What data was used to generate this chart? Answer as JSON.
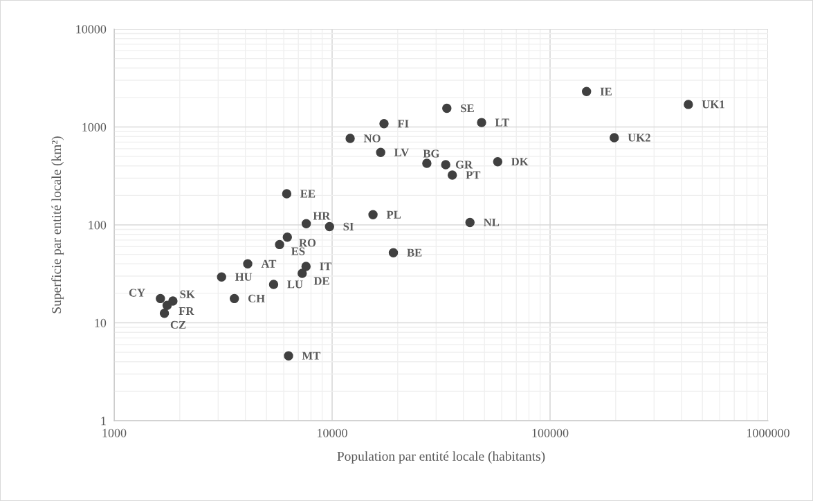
{
  "chart_data": {
    "type": "scatter",
    "xlabel": "Population par entité locale (habitants)",
    "ylabel": "Superficie par entité locale (km²)",
    "log": "xy",
    "grid": true,
    "marker": "circle",
    "legend": false,
    "xlim": [
      1000,
      1000000
    ],
    "xticks": [
      1000,
      10000,
      100000,
      1000000
    ],
    "ylim": [
      1,
      10000
    ],
    "yticks": [
      1,
      10,
      100,
      1000,
      10000
    ],
    "series": [
      {
        "color": "#404040",
        "x": [
          147000,
          431000,
          197000,
          33600,
          17300,
          48500,
          12100,
          16700,
          27200,
          33200,
          35600,
          57500,
          6190,
          7610,
          15400,
          9730,
          42900,
          6230,
          5740,
          19100,
          4100,
          7590,
          3110,
          7290,
          5390,
          1630,
          1860,
          3560,
          1750,
          1700,
          6310
        ],
        "values": [
          2300,
          1700,
          777,
          1550,
          1080,
          1110,
          764,
          550,
          426,
          412,
          323,
          442,
          208,
          103,
          127,
          96,
          106,
          75,
          63,
          52,
          40,
          37.7,
          29.4,
          32,
          24.7,
          17.7,
          16.7,
          17.7,
          15.1,
          12.5,
          4.6
        ]
      }
    ],
    "annotations": [
      {
        "text": "IE",
        "x": 147000,
        "y": 2300
      },
      {
        "text": "UK1",
        "x": 431000,
        "y": 1700
      },
      {
        "text": "UK2",
        "x": 197000,
        "y": 777
      },
      {
        "text": "SE",
        "x": 33600,
        "y": 1550
      },
      {
        "text": "FI",
        "x": 17300,
        "y": 1080
      },
      {
        "text": "LT",
        "x": 48500,
        "y": 1110
      },
      {
        "text": "NO",
        "x": 12100,
        "y": 764
      },
      {
        "text": "LV",
        "x": 16700,
        "y": 550
      },
      {
        "text": "BG",
        "x": 27200,
        "y": 426
      },
      {
        "text": "GR",
        "x": 33200,
        "y": 412
      },
      {
        "text": "PT",
        "x": 35600,
        "y": 323
      },
      {
        "text": "DK",
        "x": 57500,
        "y": 442
      },
      {
        "text": "EE",
        "x": 6190,
        "y": 208
      },
      {
        "text": "HR",
        "x": 7610,
        "y": 103
      },
      {
        "text": "PL",
        "x": 15400,
        "y": 127
      },
      {
        "text": "SI",
        "x": 9730,
        "y": 96
      },
      {
        "text": "NL",
        "x": 42900,
        "y": 106
      },
      {
        "text": "RO",
        "x": 6230,
        "y": 75
      },
      {
        "text": "ES",
        "x": 5740,
        "y": 63
      },
      {
        "text": "BE",
        "x": 19100,
        "y": 52
      },
      {
        "text": "AT",
        "x": 4100,
        "y": 40
      },
      {
        "text": "IT",
        "x": 7590,
        "y": 37.7
      },
      {
        "text": "HU",
        "x": 3110,
        "y": 29.4
      },
      {
        "text": "DE",
        "x": 7290,
        "y": 32
      },
      {
        "text": "LU",
        "x": 5390,
        "y": 24.7
      },
      {
        "text": "CY",
        "x": 1630,
        "y": 17.7
      },
      {
        "text": "SK",
        "x": 1860,
        "y": 16.7
      },
      {
        "text": "CH",
        "x": 3560,
        "y": 17.7
      },
      {
        "text": "FR",
        "x": 1750,
        "y": 15.1
      },
      {
        "text": "CZ",
        "x": 1700,
        "y": 12.5
      },
      {
        "text": "MT",
        "x": 6310,
        "y": 4.6
      }
    ]
  }
}
